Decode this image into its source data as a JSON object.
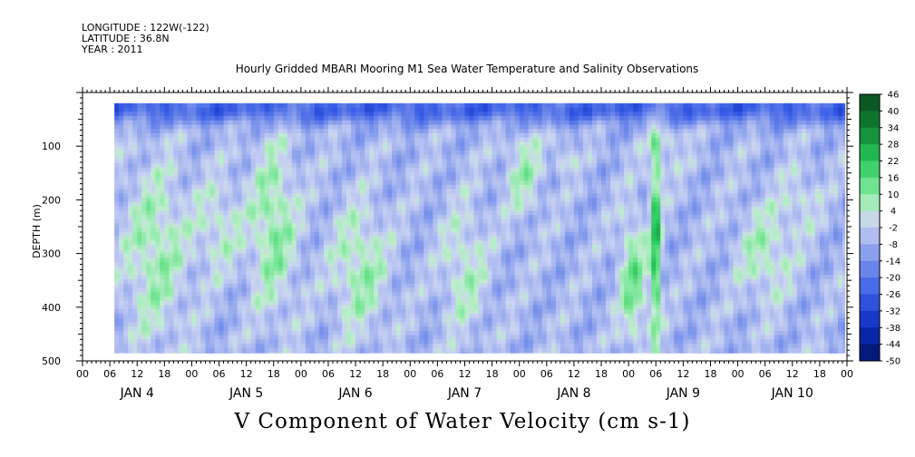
{
  "header": {
    "longitude": "LONGITUDE : 122W(-122)",
    "latitude": "LATITUDE : 36.8N",
    "year": "YEAR : 2011"
  },
  "chart_data": {
    "type": "heatmap",
    "title": "Hourly Gridded MBARI Mooring M1 Sea Water Temperature and Salinity Observations",
    "xlabel": "V Component of Water Velocity (cm s-1)",
    "ylabel": "DEPTH (m)",
    "ylim": [
      500,
      0
    ],
    "xlim_hours": [
      0,
      168
    ],
    "y_ticks": [
      100,
      200,
      300,
      400,
      500
    ],
    "x_hour_ticks": [
      "00",
      "06",
      "12",
      "18",
      "00",
      "06",
      "12",
      "18",
      "00",
      "06",
      "12",
      "18",
      "00",
      "06",
      "12",
      "18",
      "00",
      "06",
      "12",
      "18",
      "00",
      "06",
      "12",
      "18",
      "00",
      "06",
      "12",
      "18",
      "00"
    ],
    "day_labels": [
      "JAN  4",
      "JAN  5",
      "JAN  6",
      "JAN  7",
      "JAN  8",
      "JAN  9",
      "JAN 10"
    ],
    "data_extent": {
      "start_hour": 7,
      "end_hour": 167.5,
      "top_depth": 20,
      "bottom_depth": 485
    },
    "colorbar_levels": [
      "46",
      "40",
      "34",
      "28",
      "22",
      "16",
      "10",
      "4",
      "-2",
      "-8",
      "-14",
      "-20",
      "-26",
      "-32",
      "-38",
      "-44",
      "-50"
    ],
    "value_range": [
      -50,
      46
    ],
    "colors": {
      "strong_negative": "#001266",
      "negative": "#3a5ee6",
      "near_zero": "#bcc8f2",
      "positive": "#6fe38a",
      "strong_positive": "#0a4a1e"
    }
  }
}
